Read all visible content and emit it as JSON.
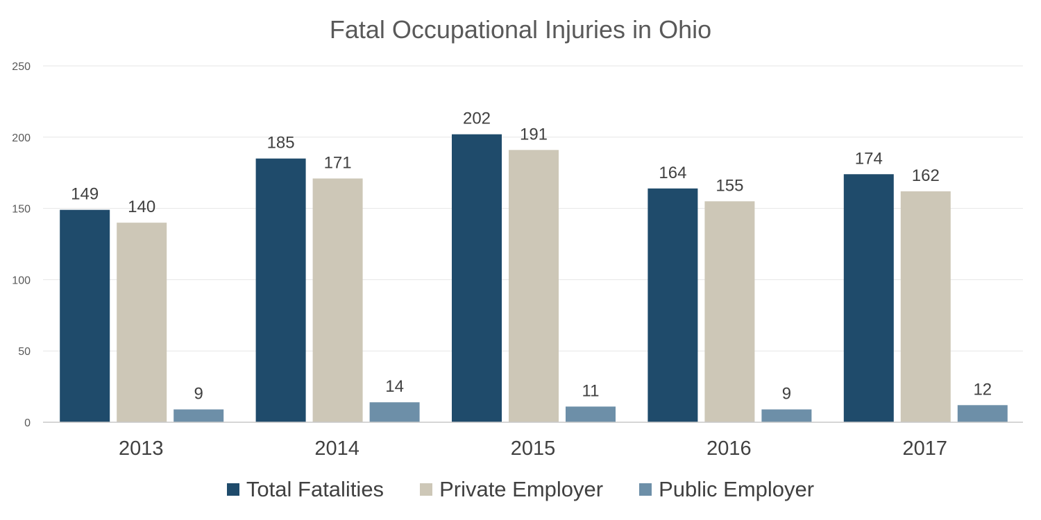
{
  "chart_data": {
    "type": "bar",
    "title": "Fatal Occupational Injuries in Ohio",
    "categories": [
      "2013",
      "2014",
      "2015",
      "2016",
      "2017"
    ],
    "series": [
      {
        "name": "Total Fatalities",
        "values": [
          149,
          185,
          202,
          164,
          174
        ],
        "color": "#1f4b6b"
      },
      {
        "name": "Private Employer",
        "values": [
          140,
          171,
          191,
          155,
          162
        ],
        "color": "#cdc7b7"
      },
      {
        "name": "Public Employer",
        "values": [
          9,
          14,
          11,
          9,
          12
        ],
        "color": "#6d8fa8"
      }
    ],
    "ylim": [
      0,
      250
    ],
    "yticks": [
      0,
      50,
      100,
      150,
      200,
      250
    ],
    "grid": true,
    "data_labels": true,
    "legend_position": "bottom"
  }
}
